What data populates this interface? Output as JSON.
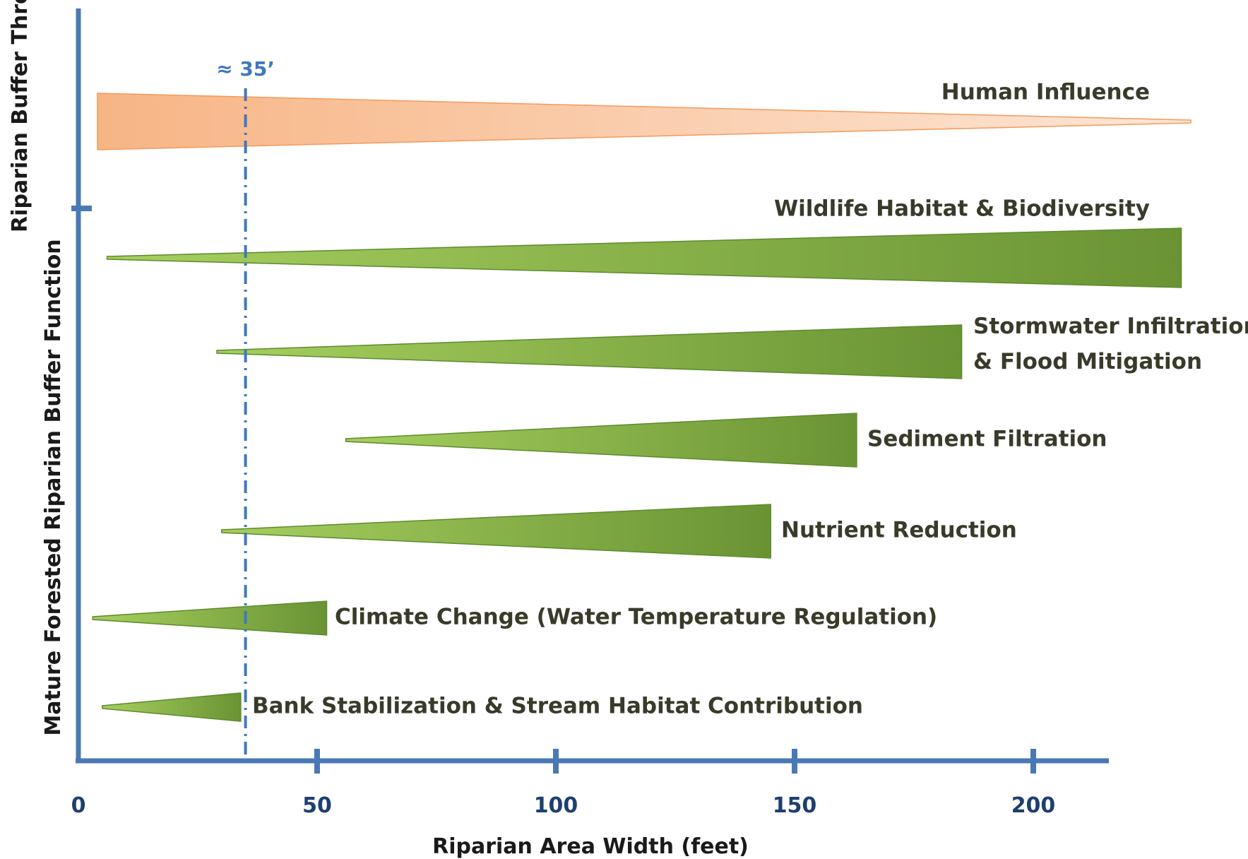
{
  "chart_data": {
    "type": "bar",
    "x_axis": {
      "label": "Riparian Area Width (feet)",
      "ticks": [
        0,
        50,
        100,
        150,
        200
      ],
      "range": [
        0,
        218
      ]
    },
    "y_axis_groups": [
      {
        "label": "Riparian Buffer Threat"
      },
      {
        "label": "Mature Forested Riparian Buffer Function"
      }
    ],
    "reference_line": {
      "x": 35,
      "label": "≈ 35’"
    },
    "series": [
      {
        "name": "Human Influence",
        "group": 0,
        "x_start": 4,
        "x_end": 233,
        "direction": "decreasing",
        "color": "#f9b98a"
      },
      {
        "name": "Wildlife Habitat & Biodiversity",
        "group": 1,
        "x_start": 6,
        "x_end": 231,
        "direction": "increasing",
        "color": "#6e9a35"
      },
      {
        "name": "Stormwater Infiltration & Flood Mitigation",
        "lines": [
          "Stormwater Infiltration",
          "& Flood Mitigation"
        ],
        "group": 1,
        "x_start": 29,
        "x_end": 185,
        "direction": "increasing",
        "color": "#6e9a35"
      },
      {
        "name": "Sediment Filtration",
        "group": 1,
        "x_start": 56,
        "x_end": 163,
        "direction": "increasing",
        "color": "#6e9a35"
      },
      {
        "name": "Nutrient Reduction",
        "group": 1,
        "x_start": 30,
        "x_end": 145,
        "direction": "increasing",
        "color": "#6e9a35"
      },
      {
        "name": "Climate Change (Water Temperature Regulation)",
        "group": 1,
        "x_start": 3,
        "x_end": 52,
        "direction": "increasing",
        "color": "#6e9a35"
      },
      {
        "name": "Bank Stabilization & Stream Habitat Contribution",
        "group": 1,
        "x_start": 5,
        "x_end": 34,
        "direction": "increasing",
        "color": "#6e9a35"
      }
    ],
    "colors": {
      "axis": "#4a78b5",
      "threat": "#f9b98a",
      "function": "#6e9a35",
      "reference": "#3f78bd"
    }
  }
}
